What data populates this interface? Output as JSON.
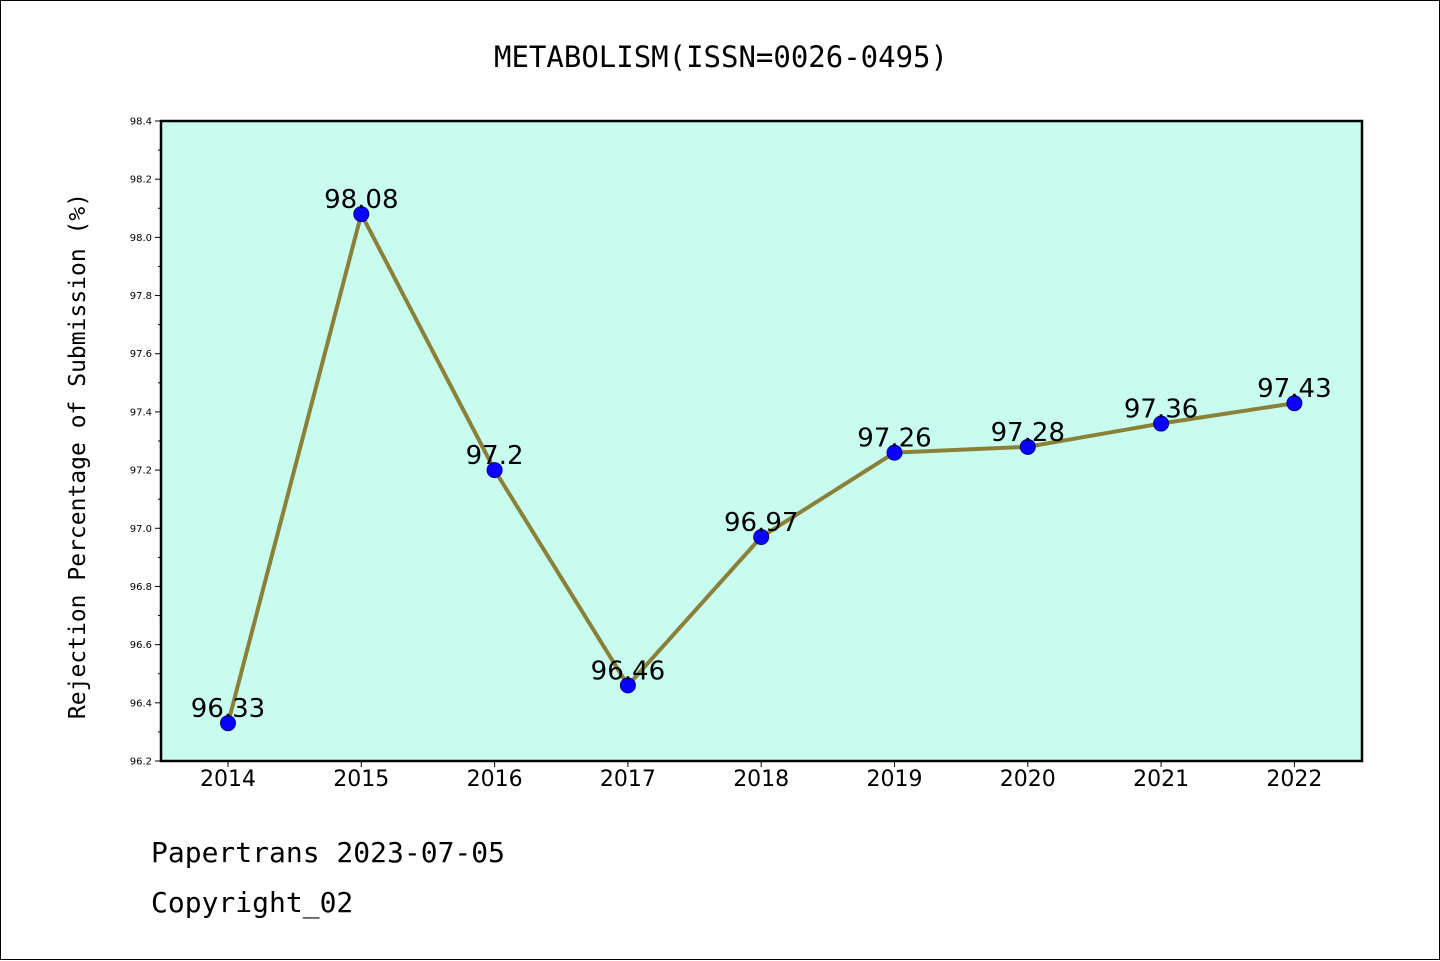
{
  "chart_data": {
    "type": "line",
    "title": "METABOLISM(ISSN=0026-0495)",
    "ylabel": "Rejection Percentage of Submission (%)",
    "xlabel": "",
    "categories": [
      "2014",
      "2015",
      "2016",
      "2017",
      "2018",
      "2019",
      "2020",
      "2021",
      "2022"
    ],
    "values": [
      96.33,
      98.08,
      97.2,
      96.46,
      96.97,
      97.26,
      97.28,
      97.36,
      97.43
    ],
    "data_labels": [
      "96.33",
      "98.08",
      "97.2",
      "96.46",
      "96.97",
      "97.26",
      "97.28",
      "97.36",
      "97.43"
    ],
    "ylim": [
      96.2,
      98.4
    ],
    "yticks": [
      "96.2",
      "96.4",
      "96.6",
      "96.8",
      "97.0",
      "97.2",
      "97.4",
      "97.6",
      "97.8",
      "98.0",
      "98.2",
      "98.4"
    ],
    "grid": false,
    "legend": "none",
    "colors": {
      "plot_background": "#c8fcee",
      "line": "#8b8038",
      "marker_fill": "#0a00ff",
      "marker_edge": "#00008b"
    }
  },
  "footer": {
    "line1": "Papertrans 2023-07-05",
    "line2": "Copyright_02"
  }
}
